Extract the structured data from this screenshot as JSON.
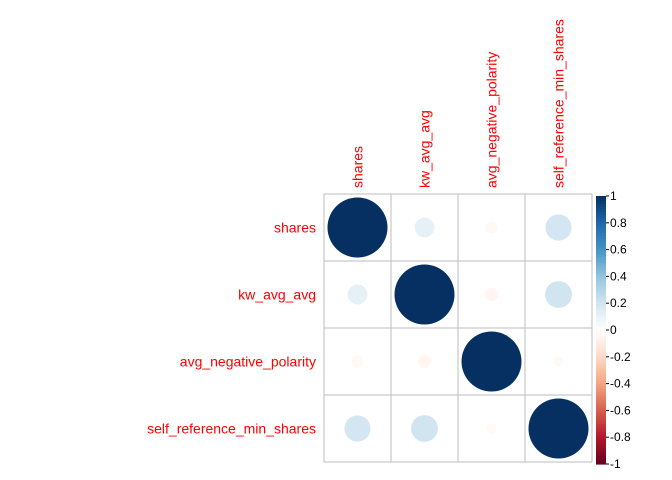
{
  "chart_data": {
    "type": "heatmap",
    "variables": [
      "shares",
      "kw_avg_avg",
      "avg_negative_polarity",
      "self_reference_min_shares"
    ],
    "matrix": [
      [
        1.0,
        0.11,
        -0.04,
        0.19
      ],
      [
        0.11,
        1.0,
        -0.05,
        0.2
      ],
      [
        -0.04,
        -0.05,
        1.0,
        -0.03
      ],
      [
        0.19,
        0.2,
        -0.03,
        1.0
      ]
    ],
    "colorbar": {
      "range": [
        -1,
        1
      ],
      "ticks": [
        "-1",
        "-0.8",
        "-0.6",
        "-0.4",
        "-0.2",
        "0",
        "0.2",
        "0.4",
        "0.6",
        "0.8",
        "1"
      ]
    },
    "label_color": "#ff0000",
    "palette": [
      "#67001F",
      "#B2182B",
      "#D6604D",
      "#F4A582",
      "#FDDBC7",
      "#FFFFFF",
      "#D1E5F0",
      "#92C5DE",
      "#4393C3",
      "#2166AC",
      "#053061"
    ]
  }
}
